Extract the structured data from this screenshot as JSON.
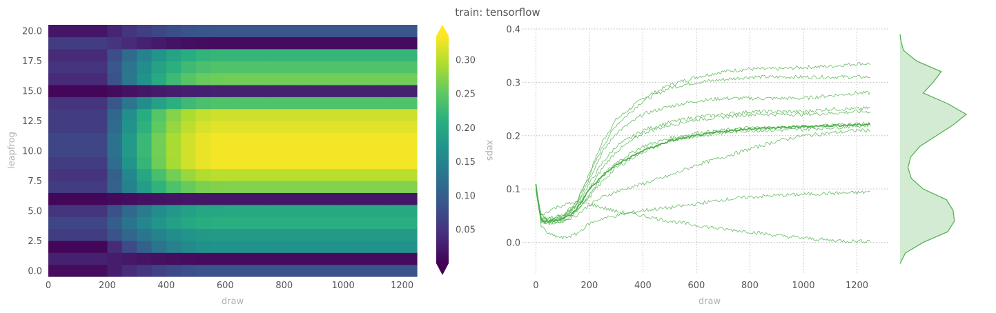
{
  "figure": {
    "title": "train: tensorflow"
  },
  "chart_data": [
    {
      "type": "heatmap",
      "xlabel": "draw",
      "ylabel": "leapfrog",
      "x_ticks": [
        0,
        200,
        400,
        600,
        800,
        1000,
        1200
      ],
      "y_ticks": [
        0.0,
        2.5,
        5.0,
        7.5,
        10.0,
        12.5,
        15.0,
        17.5,
        20.0
      ],
      "x_ticklabels": [
        "0",
        "200",
        "400",
        "600",
        "800",
        "1000",
        "1200"
      ],
      "y_ticklabels": [
        "0.0",
        "2.5",
        "5.0",
        "7.5",
        "10.0",
        "12.5",
        "15.0",
        "17.5",
        "20.0"
      ],
      "xlim": [
        0,
        1250
      ],
      "ylim": [
        -0.5,
        20.5
      ],
      "rows": [
        0,
        1,
        2,
        3,
        4,
        5,
        6,
        7,
        8,
        9,
        10,
        11,
        12,
        13,
        14,
        15,
        16,
        17,
        18,
        19,
        20
      ],
      "row_final_values": [
        0.085,
        0.01,
        0.17,
        0.18,
        0.21,
        0.2,
        0.02,
        0.27,
        0.3,
        0.33,
        0.33,
        0.33,
        0.32,
        0.31,
        0.24,
        0.03,
        0.26,
        0.24,
        0.22,
        0.01,
        0.09
      ],
      "row_early_values": [
        0.01,
        0.03,
        0.005,
        0.06,
        0.07,
        0.05,
        0.005,
        0.06,
        0.05,
        0.06,
        0.07,
        0.07,
        0.06,
        0.06,
        0.05,
        0.005,
        0.04,
        0.05,
        0.04,
        0.06,
        0.02
      ],
      "colorbar": {
        "label": "xeps",
        "ticks": [
          0.05,
          0.1,
          0.15,
          0.2,
          0.25,
          0.3
        ],
        "ticklabels": [
          "0.05",
          "0.10",
          "0.15",
          "0.20",
          "0.25",
          "0.30"
        ],
        "range": [
          0.0,
          0.335
        ],
        "colormap": "viridis",
        "extend": "both"
      }
    },
    {
      "type": "line",
      "xlabel": "draw",
      "ylabel": "",
      "x_ticks": [
        0,
        200,
        400,
        600,
        800,
        1000,
        1200
      ],
      "y_ticks": [
        0.0,
        0.1,
        0.2,
        0.3,
        0.4
      ],
      "x_ticklabels": [
        "0",
        "200",
        "400",
        "600",
        "800",
        "1000",
        "1200"
      ],
      "y_ticklabels": [
        "0.0",
        "0.1",
        "0.2",
        "0.3",
        "0.4"
      ],
      "xlim": [
        -50,
        1320
      ],
      "ylim": [
        -0.06,
        0.4
      ],
      "grid": true,
      "color": "#4daf4a",
      "mean_series": {
        "x": [
          0,
          10,
          20,
          30,
          50,
          80,
          110,
          140,
          170,
          200,
          250,
          300,
          400,
          500,
          600,
          700,
          800,
          900,
          1000,
          1100,
          1200,
          1250
        ],
        "y": [
          0.11,
          0.07,
          0.045,
          0.038,
          0.04,
          0.042,
          0.046,
          0.055,
          0.075,
          0.1,
          0.125,
          0.145,
          0.172,
          0.19,
          0.2,
          0.208,
          0.213,
          0.215,
          0.217,
          0.219,
          0.22,
          0.222
        ]
      },
      "series": [
        {
          "x": [
            0,
            20,
            50,
            100,
            150,
            200,
            250,
            300,
            400,
            500,
            600,
            700,
            800,
            900,
            1000,
            1100,
            1200,
            1250
          ],
          "y": [
            0.1,
            0.045,
            0.04,
            0.045,
            0.07,
            0.13,
            0.19,
            0.23,
            0.27,
            0.295,
            0.31,
            0.32,
            0.325,
            0.325,
            0.328,
            0.33,
            0.335,
            0.335
          ]
        },
        {
          "x": [
            0,
            20,
            50,
            100,
            150,
            200,
            250,
            300,
            400,
            500,
            600,
            700,
            800,
            900,
            1000,
            1100,
            1200,
            1250
          ],
          "y": [
            0.1,
            0.05,
            0.045,
            0.05,
            0.075,
            0.125,
            0.18,
            0.22,
            0.265,
            0.29,
            0.3,
            0.305,
            0.31,
            0.31,
            0.31,
            0.31,
            0.31,
            0.31
          ]
        },
        {
          "x": [
            0,
            20,
            50,
            100,
            150,
            200,
            250,
            300,
            400,
            500,
            600,
            700,
            800,
            900,
            1000,
            1100,
            1200,
            1250
          ],
          "y": [
            0.1,
            0.045,
            0.04,
            0.048,
            0.07,
            0.12,
            0.17,
            0.205,
            0.24,
            0.255,
            0.265,
            0.27,
            0.27,
            0.27,
            0.27,
            0.275,
            0.28,
            0.28
          ]
        },
        {
          "x": [
            0,
            20,
            50,
            100,
            150,
            200,
            250,
            300,
            400,
            500,
            600,
            700,
            800,
            900,
            1000,
            1100,
            1200,
            1250
          ],
          "y": [
            0.1,
            0.05,
            0.045,
            0.05,
            0.068,
            0.11,
            0.15,
            0.18,
            0.21,
            0.225,
            0.235,
            0.24,
            0.245,
            0.245,
            0.245,
            0.25,
            0.25,
            0.252
          ]
        },
        {
          "x": [
            0,
            20,
            50,
            100,
            150,
            200,
            250,
            300,
            400,
            500,
            600,
            700,
            800,
            900,
            1000,
            1100,
            1200,
            1250
          ],
          "y": [
            0.1,
            0.045,
            0.04,
            0.045,
            0.062,
            0.1,
            0.14,
            0.17,
            0.205,
            0.22,
            0.23,
            0.235,
            0.24,
            0.24,
            0.24,
            0.242,
            0.245,
            0.245
          ]
        },
        {
          "x": [
            0,
            20,
            50,
            100,
            150,
            200,
            250,
            300,
            400,
            500,
            600,
            700,
            800,
            900,
            1000,
            1100,
            1200,
            1250
          ],
          "y": [
            0.1,
            0.04,
            0.035,
            0.04,
            0.055,
            0.09,
            0.125,
            0.15,
            0.18,
            0.195,
            0.205,
            0.21,
            0.215,
            0.215,
            0.217,
            0.22,
            0.222,
            0.222
          ]
        },
        {
          "x": [
            0,
            20,
            50,
            100,
            150,
            200,
            250,
            300,
            400,
            500,
            600,
            700,
            800,
            900,
            1000,
            1100,
            1200,
            1250
          ],
          "y": [
            0.1,
            0.045,
            0.04,
            0.045,
            0.06,
            0.085,
            0.115,
            0.14,
            0.17,
            0.19,
            0.2,
            0.205,
            0.21,
            0.21,
            0.212,
            0.215,
            0.218,
            0.22
          ]
        },
        {
          "x": [
            0,
            20,
            50,
            100,
            150,
            200,
            250,
            300,
            400,
            500,
            600,
            700,
            800,
            900,
            1000,
            1100,
            1200,
            1250
          ],
          "y": [
            0.1,
            0.04,
            0.035,
            0.04,
            0.05,
            0.07,
            0.085,
            0.095,
            0.11,
            0.125,
            0.145,
            0.16,
            0.175,
            0.19,
            0.2,
            0.205,
            0.21,
            0.21
          ]
        },
        {
          "x": [
            0,
            20,
            50,
            100,
            150,
            200,
            250,
            300,
            400,
            500,
            600,
            700,
            800,
            900,
            1000,
            1100,
            1200,
            1250
          ],
          "y": [
            0.1,
            0.03,
            0.015,
            0.008,
            0.015,
            0.035,
            0.045,
            0.05,
            0.06,
            0.065,
            0.072,
            0.08,
            0.085,
            0.088,
            0.09,
            0.092,
            0.093,
            0.095
          ]
        },
        {
          "x": [
            0,
            20,
            50,
            100,
            150,
            200,
            250,
            300,
            400,
            500,
            600,
            700,
            800,
            900,
            1000,
            1100,
            1200,
            1250
          ],
          "y": [
            0.1,
            0.05,
            0.06,
            0.07,
            0.075,
            0.072,
            0.065,
            0.058,
            0.05,
            0.04,
            0.032,
            0.025,
            0.02,
            0.013,
            0.008,
            0.004,
            0.002,
            0.003
          ]
        }
      ]
    },
    {
      "type": "area",
      "description": "marginal density of final xeps values (rotated KDE)",
      "color": "#4daf4a",
      "y": [
        -0.04,
        -0.02,
        0.0,
        0.02,
        0.04,
        0.06,
        0.08,
        0.1,
        0.12,
        0.14,
        0.16,
        0.18,
        0.2,
        0.22,
        0.24,
        0.26,
        0.28,
        0.3,
        0.32,
        0.34,
        0.36,
        0.38,
        0.39
      ],
      "density": [
        0.0,
        0.08,
        0.35,
        0.72,
        0.82,
        0.8,
        0.7,
        0.35,
        0.17,
        0.12,
        0.16,
        0.3,
        0.55,
        0.8,
        1.0,
        0.72,
        0.35,
        0.5,
        0.62,
        0.25,
        0.05,
        0.01,
        0.0
      ]
    }
  ]
}
